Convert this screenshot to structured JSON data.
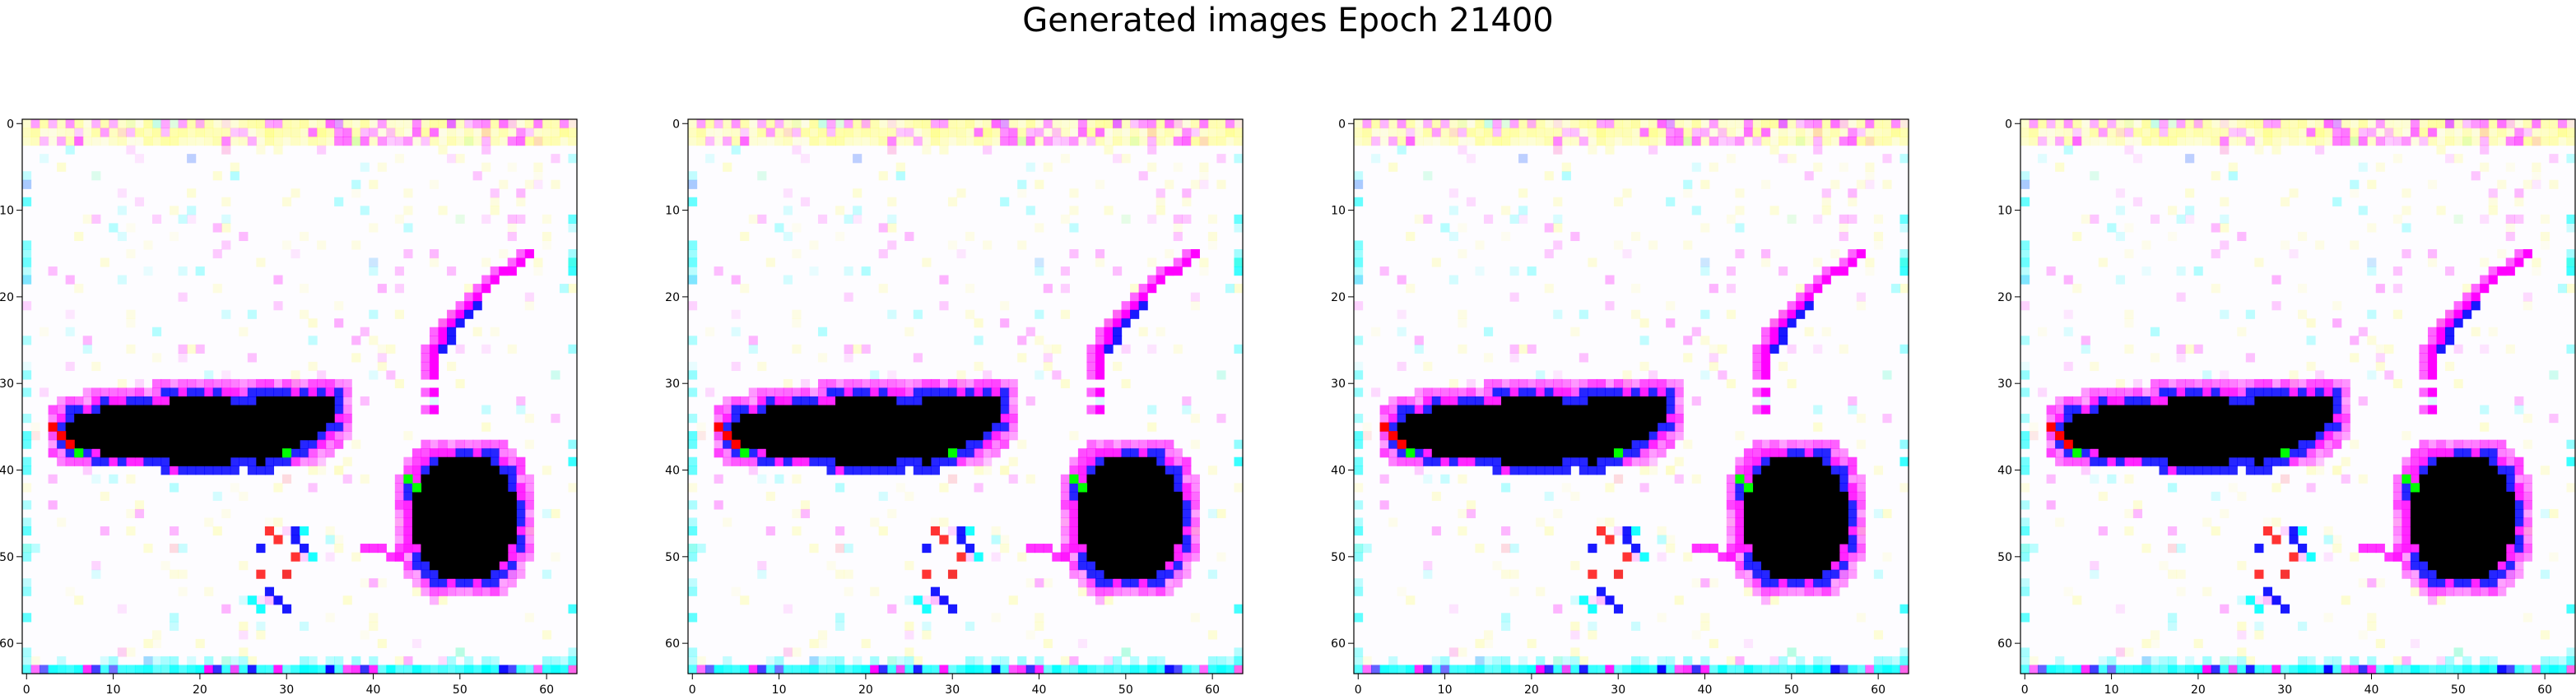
{
  "chart_data": {
    "type": "heatmap",
    "title": "Generated images Epoch 21400",
    "grid": false,
    "panels": [
      {
        "xlim": [
          0,
          63
        ],
        "ylim": [
          63,
          0
        ],
        "xticks": [
          0,
          10,
          20,
          30,
          40,
          50,
          60
        ],
        "yticks": [
          0,
          10,
          20,
          30,
          40,
          50,
          60
        ]
      },
      {
        "xlim": [
          0,
          63
        ],
        "ylim": [
          63,
          0
        ],
        "xticks": [
          0,
          10,
          20,
          30,
          40,
          50,
          60
        ],
        "yticks": [
          0,
          10,
          20,
          30,
          40,
          50,
          60
        ]
      },
      {
        "xlim": [
          0,
          63
        ],
        "ylim": [
          63,
          0
        ],
        "xticks": [
          0,
          10,
          20,
          30,
          40,
          50,
          60
        ],
        "yticks": [
          0,
          10,
          20,
          30,
          40,
          50,
          60
        ]
      },
      {
        "xlim": [
          0,
          63
        ],
        "ylim": [
          63,
          0
        ],
        "xticks": [
          0,
          10,
          20,
          30,
          40,
          50,
          60
        ],
        "yticks": [
          0,
          10,
          20,
          30,
          40,
          50,
          60
        ]
      }
    ],
    "image_colors": {
      "background": "#fdfcff",
      "shape_fill": "#000000",
      "outline_primary": "#0000ff",
      "outline_secondary": "#ff00ff",
      "speckle_yellow": "#ffff66",
      "speckle_cyan": "#00ffff",
      "accent_red": "#ff0000",
      "accent_green": "#00ff00"
    }
  }
}
